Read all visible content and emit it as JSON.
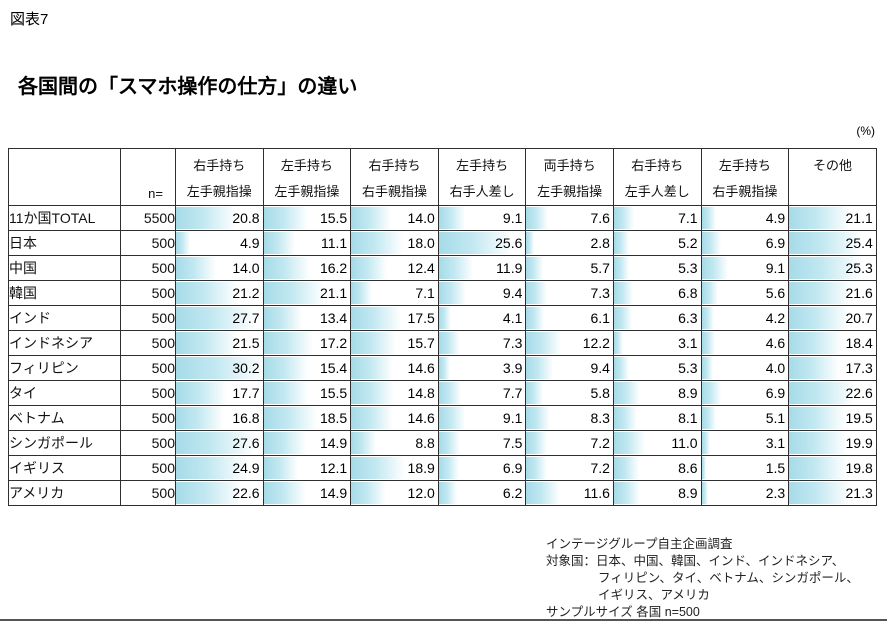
{
  "figure_label": "図表7",
  "title": "各国間の「スマホ操作の仕方」の違い",
  "unit_label": "(%)",
  "chart_data": {
    "type": "table",
    "title": "各国間の「スマホ操作の仕方」の違い",
    "unit": "%",
    "n_label": "n=",
    "bar_scale_max": 30.2,
    "bar_color_start": "#a6dbe8",
    "bar_color_mid": "#c2e8f1",
    "bar_color_end": "#ffffff",
    "columns": [
      {
        "line1": "右手持ち",
        "line2": "左手親指操"
      },
      {
        "line1": "左手持ち",
        "line2": "左手親指操"
      },
      {
        "line1": "右手持ち",
        "line2": "右手親指操"
      },
      {
        "line1": "左手持ち",
        "line2": "右手人差し"
      },
      {
        "line1": "両手持ち",
        "line2": "左手親指操"
      },
      {
        "line1": "右手持ち",
        "line2": "左手人差し"
      },
      {
        "line1": "左手持ち",
        "line2": "右手親指操"
      },
      {
        "line1": "その他",
        "line2": ""
      }
    ],
    "rows": [
      {
        "country": "11か国TOTAL",
        "n": "5500",
        "values": [
          20.8,
          15.5,
          14.0,
          9.1,
          7.6,
          7.1,
          4.9,
          21.1
        ]
      },
      {
        "country": "日本",
        "n": "500",
        "values": [
          4.9,
          11.1,
          18.0,
          25.6,
          2.8,
          5.2,
          6.9,
          25.4
        ]
      },
      {
        "country": "中国",
        "n": "500",
        "values": [
          14.0,
          16.2,
          12.4,
          11.9,
          5.7,
          5.3,
          9.1,
          25.3
        ]
      },
      {
        "country": "韓国",
        "n": "500",
        "values": [
          21.2,
          21.1,
          7.1,
          9.4,
          7.3,
          6.8,
          5.6,
          21.6
        ]
      },
      {
        "country": "インド",
        "n": "500",
        "values": [
          27.7,
          13.4,
          17.5,
          4.1,
          6.1,
          6.3,
          4.2,
          20.7
        ]
      },
      {
        "country": "インドネシア",
        "n": "500",
        "values": [
          21.5,
          17.2,
          15.7,
          7.3,
          12.2,
          3.1,
          4.6,
          18.4
        ]
      },
      {
        "country": "フィリピン",
        "n": "500",
        "values": [
          30.2,
          15.4,
          14.6,
          3.9,
          9.4,
          5.3,
          4.0,
          17.3
        ]
      },
      {
        "country": "タイ",
        "n": "500",
        "values": [
          17.7,
          15.5,
          14.8,
          7.7,
          5.8,
          8.9,
          6.9,
          22.6
        ]
      },
      {
        "country": "ベトナム",
        "n": "500",
        "values": [
          16.8,
          18.5,
          14.6,
          9.1,
          8.3,
          8.1,
          5.1,
          19.5
        ]
      },
      {
        "country": "シンガポール",
        "n": "500",
        "values": [
          27.6,
          14.9,
          8.8,
          7.5,
          7.2,
          11.0,
          3.1,
          19.9
        ]
      },
      {
        "country": "イギリス",
        "n": "500",
        "values": [
          24.9,
          12.1,
          18.9,
          6.9,
          7.2,
          8.6,
          1.5,
          19.8
        ]
      },
      {
        "country": "アメリカ",
        "n": "500",
        "values": [
          22.6,
          14.9,
          12.0,
          6.2,
          11.6,
          8.9,
          2.3,
          21.3
        ]
      }
    ]
  },
  "footer": {
    "line1": "インテージグループ自主企画調査",
    "line2": "対象国：日本、中国、韓国、インド、インドネシア、",
    "line3": "フィリピン、タイ、ベトナム、シンガポール、",
    "line4": "イギリス、アメリカ",
    "line5": "サンプルサイズ 各国 n=500"
  }
}
